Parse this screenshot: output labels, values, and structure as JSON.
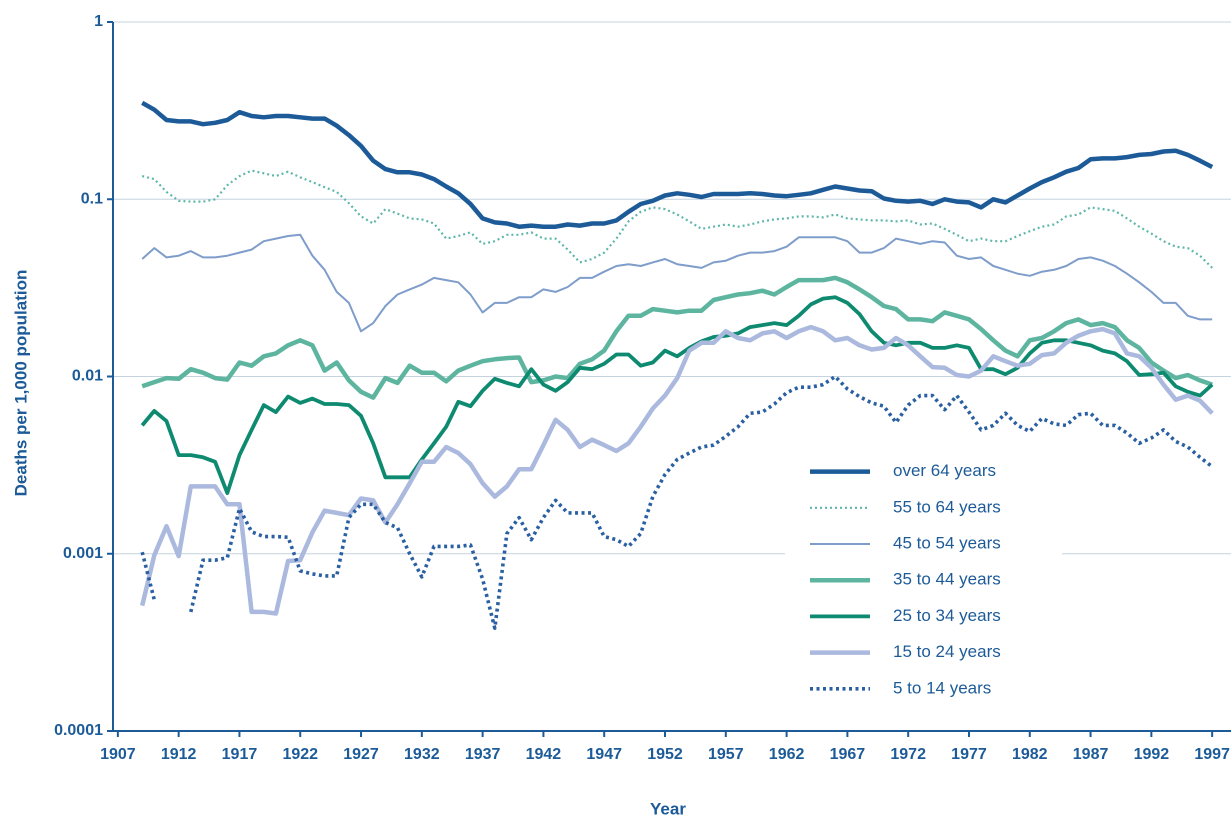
{
  "chart_data": {
    "type": "line",
    "x_label": "Year",
    "y_label": "Deaths per 1,000 population",
    "log_y": true,
    "grid": true,
    "legend": "lower right",
    "xlim": [
      1906.6,
      1998.55
    ],
    "xticks": [
      1907,
      1912,
      1917,
      1922,
      1927,
      1932,
      1937,
      1942,
      1947,
      1952,
      1957,
      1962,
      1967,
      1972,
      1977,
      1982,
      1987,
      1992,
      1997
    ],
    "ylim": [
      0.0001,
      1
    ],
    "yticks": [
      0.0001,
      0.001,
      0.01,
      0.1,
      1
    ],
    "x": [
      1909,
      1910,
      1911,
      1912,
      1913,
      1914,
      1915,
      1916,
      1917,
      1918,
      1919,
      1920,
      1921,
      1922,
      1923,
      1924,
      1925,
      1926,
      1927,
      1928,
      1929,
      1930,
      1931,
      1932,
      1933,
      1934,
      1935,
      1936,
      1937,
      1938,
      1939,
      1940,
      1941,
      1942,
      1943,
      1944,
      1945,
      1946,
      1947,
      1948,
      1949,
      1950,
      1951,
      1952,
      1953,
      1954,
      1955,
      1956,
      1957,
      1958,
      1959,
      1960,
      1961,
      1962,
      1963,
      1964,
      1965,
      1966,
      1967,
      1968,
      1969,
      1970,
      1971,
      1972,
      1973,
      1974,
      1975,
      1976,
      1977,
      1978,
      1979,
      1980,
      1981,
      1982,
      1983,
      1984,
      1985,
      1986,
      1987,
      1988,
      1989,
      1990,
      1991,
      1992,
      1993,
      1994,
      1995,
      1996,
      1997
    ],
    "series": [
      {
        "name": "over 64 years",
        "color": "#1d5b98",
        "style": "solid",
        "width": 4.5,
        "values": [
          0.35,
          0.32,
          0.28,
          0.275,
          0.275,
          0.265,
          0.27,
          0.28,
          0.31,
          0.295,
          0.29,
          0.295,
          0.295,
          0.29,
          0.285,
          0.285,
          0.26,
          0.23,
          0.2,
          0.165,
          0.148,
          0.142,
          0.142,
          0.138,
          0.13,
          0.118,
          0.108,
          0.094,
          0.078,
          0.074,
          0.073,
          0.07,
          0.071,
          0.07,
          0.07,
          0.072,
          0.071,
          0.073,
          0.073,
          0.076,
          0.085,
          0.094,
          0.098,
          0.105,
          0.108,
          0.106,
          0.103,
          0.107,
          0.107,
          0.107,
          0.108,
          0.107,
          0.105,
          0.104,
          0.106,
          0.108,
          0.113,
          0.118,
          0.115,
          0.112,
          0.111,
          0.101,
          0.098,
          0.097,
          0.098,
          0.094,
          0.1,
          0.097,
          0.096,
          0.09,
          0.1,
          0.096,
          0.105,
          0.115,
          0.125,
          0.133,
          0.143,
          0.15,
          0.168,
          0.17,
          0.17,
          0.173,
          0.178,
          0.18,
          0.186,
          0.188,
          0.178,
          0.165,
          0.152
        ]
      },
      {
        "name": "55 to 64 years",
        "color": "#5fb6aa",
        "style": "dotted",
        "width": 2.2,
        "values": [
          0.135,
          0.13,
          0.11,
          0.098,
          0.097,
          0.097,
          0.1,
          0.12,
          0.135,
          0.145,
          0.14,
          0.135,
          0.143,
          0.133,
          0.125,
          0.117,
          0.11,
          0.095,
          0.08,
          0.073,
          0.088,
          0.083,
          0.078,
          0.077,
          0.073,
          0.06,
          0.062,
          0.065,
          0.056,
          0.058,
          0.063,
          0.063,
          0.065,
          0.06,
          0.06,
          0.052,
          0.044,
          0.046,
          0.05,
          0.06,
          0.075,
          0.085,
          0.09,
          0.088,
          0.082,
          0.075,
          0.068,
          0.07,
          0.072,
          0.07,
          0.072,
          0.075,
          0.077,
          0.078,
          0.08,
          0.08,
          0.079,
          0.082,
          0.078,
          0.077,
          0.076,
          0.076,
          0.075,
          0.076,
          0.072,
          0.073,
          0.068,
          0.063,
          0.058,
          0.06,
          0.058,
          0.058,
          0.062,
          0.066,
          0.07,
          0.072,
          0.08,
          0.082,
          0.09,
          0.088,
          0.086,
          0.078,
          0.07,
          0.064,
          0.058,
          0.054,
          0.053,
          0.048,
          0.041
        ]
      },
      {
        "name": "45 to 54 years",
        "color": "#7f9dca",
        "style": "solid",
        "width": 2,
        "values": [
          0.046,
          0.053,
          0.047,
          0.048,
          0.051,
          0.047,
          0.047,
          0.048,
          0.05,
          0.052,
          0.058,
          0.06,
          0.062,
          0.063,
          0.048,
          0.04,
          0.03,
          0.026,
          0.018,
          0.02,
          0.025,
          0.029,
          0.031,
          0.033,
          0.036,
          0.035,
          0.034,
          0.029,
          0.023,
          0.026,
          0.026,
          0.028,
          0.028,
          0.031,
          0.03,
          0.032,
          0.036,
          0.036,
          0.039,
          0.042,
          0.043,
          0.042,
          0.044,
          0.046,
          0.043,
          0.042,
          0.041,
          0.044,
          0.045,
          0.048,
          0.05,
          0.05,
          0.051,
          0.054,
          0.061,
          0.061,
          0.061,
          0.061,
          0.058,
          0.05,
          0.05,
          0.053,
          0.06,
          0.058,
          0.056,
          0.058,
          0.057,
          0.048,
          0.046,
          0.047,
          0.042,
          0.04,
          0.038,
          0.037,
          0.039,
          0.04,
          0.042,
          0.046,
          0.047,
          0.045,
          0.042,
          0.038,
          0.034,
          0.03,
          0.026,
          0.026,
          0.022,
          0.021,
          0.021
        ]
      },
      {
        "name": "35 to 44 years",
        "color": "#5db5a0",
        "style": "solid",
        "width": 4.5,
        "values": [
          0.0088,
          0.0093,
          0.0098,
          0.0097,
          0.011,
          0.0105,
          0.0098,
          0.0096,
          0.012,
          0.0115,
          0.013,
          0.0135,
          0.015,
          0.016,
          0.015,
          0.0108,
          0.012,
          0.0095,
          0.0082,
          0.0076,
          0.0098,
          0.0092,
          0.0115,
          0.0105,
          0.0105,
          0.0094,
          0.0108,
          0.0115,
          0.0122,
          0.0125,
          0.0127,
          0.0128,
          0.0093,
          0.0095,
          0.01,
          0.0098,
          0.0118,
          0.0125,
          0.014,
          0.018,
          0.022,
          0.022,
          0.024,
          0.0235,
          0.023,
          0.0235,
          0.0235,
          0.027,
          0.028,
          0.029,
          0.0295,
          0.0305,
          0.029,
          0.032,
          0.035,
          0.035,
          0.035,
          0.036,
          0.034,
          0.031,
          0.028,
          0.025,
          0.024,
          0.021,
          0.021,
          0.0205,
          0.023,
          0.022,
          0.021,
          0.0185,
          0.016,
          0.014,
          0.013,
          0.016,
          0.0165,
          0.018,
          0.02,
          0.021,
          0.0195,
          0.02,
          0.019,
          0.016,
          0.0145,
          0.012,
          0.0108,
          0.0098,
          0.0102,
          0.0095,
          0.009
        ]
      },
      {
        "name": "25 to 34 years",
        "color": "#0d8a70",
        "style": "solid",
        "width": 3.8,
        "values": [
          0.0053,
          0.0064,
          0.0056,
          0.0036,
          0.0036,
          0.0035,
          0.0033,
          0.0022,
          0.0036,
          0.005,
          0.0069,
          0.0063,
          0.0077,
          0.0071,
          0.0075,
          0.007,
          0.007,
          0.0069,
          0.006,
          0.0042,
          0.0027,
          0.0027,
          0.0027,
          0.0034,
          0.0042,
          0.0052,
          0.0072,
          0.0068,
          0.0083,
          0.0097,
          0.0092,
          0.0088,
          0.011,
          0.009,
          0.0083,
          0.0093,
          0.0112,
          0.011,
          0.0118,
          0.0133,
          0.0133,
          0.0115,
          0.012,
          0.014,
          0.013,
          0.0145,
          0.0158,
          0.0167,
          0.017,
          0.0175,
          0.019,
          0.0195,
          0.02,
          0.0195,
          0.022,
          0.0255,
          0.0275,
          0.028,
          0.026,
          0.0225,
          0.018,
          0.0155,
          0.015,
          0.0155,
          0.0155,
          0.0145,
          0.0145,
          0.015,
          0.0145,
          0.011,
          0.011,
          0.0103,
          0.0112,
          0.0135,
          0.0155,
          0.016,
          0.016,
          0.0155,
          0.015,
          0.014,
          0.0135,
          0.0122,
          0.0102,
          0.0103,
          0.0105,
          0.0088,
          0.0082,
          0.0078,
          0.009
        ]
      },
      {
        "name": "15 to 24 years",
        "color": "#aab9dd",
        "style": "solid",
        "width": 4.5,
        "values": [
          0.00051,
          0.00098,
          0.00143,
          0.00097,
          0.0024,
          0.0024,
          0.0024,
          0.0019,
          0.0019,
          0.00047,
          0.00047,
          0.00046,
          0.00091,
          0.00092,
          0.00132,
          0.00175,
          0.0017,
          0.00165,
          0.00205,
          0.002,
          0.0015,
          0.0019,
          0.0025,
          0.0033,
          0.0033,
          0.004,
          0.0037,
          0.0032,
          0.0025,
          0.0021,
          0.0024,
          0.003,
          0.003,
          0.0041,
          0.0057,
          0.005,
          0.004,
          0.0044,
          0.0041,
          0.0038,
          0.0042,
          0.0052,
          0.0066,
          0.0078,
          0.0098,
          0.014,
          0.0155,
          0.0155,
          0.018,
          0.0165,
          0.016,
          0.0175,
          0.018,
          0.0165,
          0.018,
          0.019,
          0.018,
          0.016,
          0.0165,
          0.015,
          0.0142,
          0.0145,
          0.0165,
          0.015,
          0.013,
          0.0113,
          0.0112,
          0.0102,
          0.01,
          0.0108,
          0.013,
          0.0122,
          0.0115,
          0.0118,
          0.0132,
          0.0135,
          0.0155,
          0.017,
          0.018,
          0.0185,
          0.0175,
          0.0135,
          0.013,
          0.0112,
          0.009,
          0.0074,
          0.0078,
          0.0073,
          0.0062
        ]
      },
      {
        "name": "5 to 14 years",
        "color": "#2a60a2",
        "style": "dotted",
        "width": 3.6,
        "values": [
          0.00102,
          0.00055,
          null,
          null,
          0.00047,
          0.00092,
          0.00092,
          0.00095,
          0.0018,
          0.00133,
          0.00125,
          0.00125,
          0.00124,
          0.0008,
          0.00077,
          0.00075,
          0.00075,
          0.0016,
          0.0019,
          0.0019,
          0.0015,
          0.0014,
          0.001,
          0.00074,
          0.0011,
          0.0011,
          0.0011,
          0.00112,
          0.00072,
          0.00038,
          0.0013,
          0.0016,
          0.0012,
          0.0016,
          0.002,
          0.0017,
          0.0017,
          0.0017,
          0.00125,
          0.0012,
          0.0011,
          0.0013,
          0.0021,
          0.0028,
          0.0034,
          0.0037,
          0.004,
          0.0041,
          0.0046,
          0.0052,
          0.0062,
          0.0063,
          0.007,
          0.0081,
          0.0087,
          0.0087,
          0.009,
          0.01,
          0.0085,
          0.0077,
          0.0071,
          0.0068,
          0.0055,
          0.0069,
          0.0078,
          0.0078,
          0.0065,
          0.0078,
          0.0063,
          0.005,
          0.0053,
          0.0062,
          0.0053,
          0.0049,
          0.0058,
          0.0054,
          0.0053,
          0.0061,
          0.0062,
          0.0053,
          0.0053,
          0.0048,
          0.0042,
          0.0045,
          0.005,
          0.0043,
          0.004,
          0.0035,
          0.0031
        ]
      }
    ]
  }
}
